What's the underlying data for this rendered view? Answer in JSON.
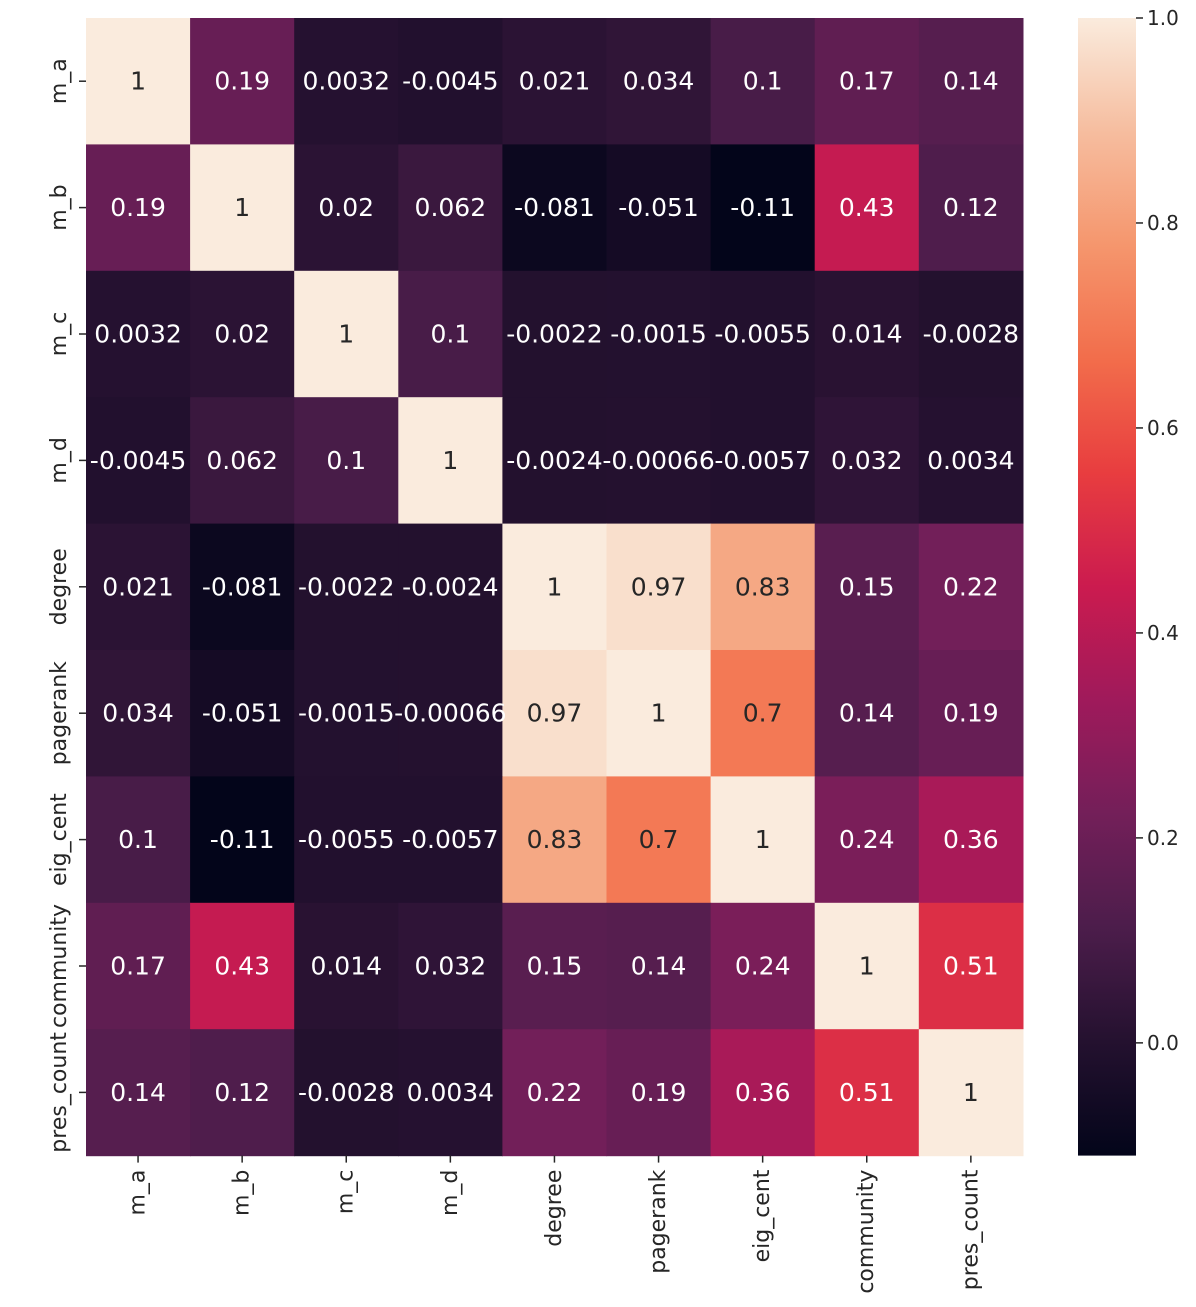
{
  "chart_data": {
    "type": "heatmap",
    "title": "",
    "xlabel": "",
    "ylabel": "",
    "rows": [
      "m_a",
      "m_b",
      "m_c",
      "m_d",
      "degree",
      "pagerank",
      "eig_cent",
      "community",
      "pres_count"
    ],
    "columns": [
      "m_a",
      "m_b",
      "m_c",
      "m_d",
      "degree",
      "pagerank",
      "eig_cent",
      "community",
      "pres_count"
    ],
    "values": [
      [
        1,
        0.19,
        0.0032,
        -0.0045,
        0.021,
        0.034,
        0.1,
        0.17,
        0.14
      ],
      [
        0.19,
        1,
        0.02,
        0.062,
        -0.081,
        -0.051,
        -0.11,
        0.43,
        0.12
      ],
      [
        0.0032,
        0.02,
        1,
        0.1,
        -0.0022,
        -0.0015,
        -0.0055,
        0.014,
        -0.0028
      ],
      [
        -0.0045,
        0.062,
        0.1,
        1,
        -0.0024,
        -0.00066,
        -0.0057,
        0.032,
        0.0034
      ],
      [
        0.021,
        -0.081,
        -0.0022,
        -0.0024,
        1,
        0.97,
        0.83,
        0.15,
        0.22
      ],
      [
        0.034,
        -0.051,
        -0.0015,
        -0.00066,
        0.97,
        1,
        0.7,
        0.14,
        0.19
      ],
      [
        0.1,
        -0.11,
        -0.0055,
        -0.0057,
        0.83,
        0.7,
        1,
        0.24,
        0.36
      ],
      [
        0.17,
        0.43,
        0.014,
        0.032,
        0.15,
        0.14,
        0.24,
        1,
        0.51
      ],
      [
        0.14,
        0.12,
        -0.0028,
        0.0034,
        0.22,
        0.19,
        0.36,
        0.51,
        1
      ]
    ],
    "value_labels": [
      [
        "1",
        "0.19",
        "0.0032",
        "-0.0045",
        "0.021",
        "0.034",
        "0.1",
        "0.17",
        "0.14"
      ],
      [
        "0.19",
        "1",
        "0.02",
        "0.062",
        "-0.081",
        "-0.051",
        "-0.11",
        "0.43",
        "0.12"
      ],
      [
        "0.0032",
        "0.02",
        "1",
        "0.1",
        "-0.0022",
        "-0.0015",
        "-0.0055",
        "0.014",
        "-0.0028"
      ],
      [
        "-0.0045",
        "0.062",
        "0.1",
        "1",
        "-0.0024",
        "-0.00066",
        "-0.0057",
        "0.032",
        "0.0034"
      ],
      [
        "0.021",
        "-0.081",
        "-0.0022",
        "-0.0024",
        "1",
        "0.97",
        "0.83",
        "0.15",
        "0.22"
      ],
      [
        "0.034",
        "-0.051",
        "-0.0015",
        "-0.00066",
        "0.97",
        "1",
        "0.7",
        "0.14",
        "0.19"
      ],
      [
        "0.1",
        "-0.11",
        "-0.0055",
        "-0.0057",
        "0.83",
        "0.7",
        "1",
        "0.24",
        "0.36"
      ],
      [
        "0.17",
        "0.43",
        "0.014",
        "0.032",
        "0.15",
        "0.14",
        "0.24",
        "1",
        "0.51"
      ],
      [
        "0.14",
        "0.12",
        "-0.0028",
        "0.0034",
        "0.22",
        "0.19",
        "0.36",
        "0.51",
        "1"
      ]
    ],
    "colormap": "rocket",
    "colorbar": {
      "range": [
        -0.11,
        1.0
      ],
      "ticks": [
        0.0,
        0.2,
        0.4,
        0.6,
        0.8,
        1.0
      ],
      "tick_labels": [
        "0.0",
        "0.2",
        "0.4",
        "0.6",
        "0.8",
        "1.0"
      ]
    },
    "grid": false,
    "legend": "colorbar-right"
  }
}
